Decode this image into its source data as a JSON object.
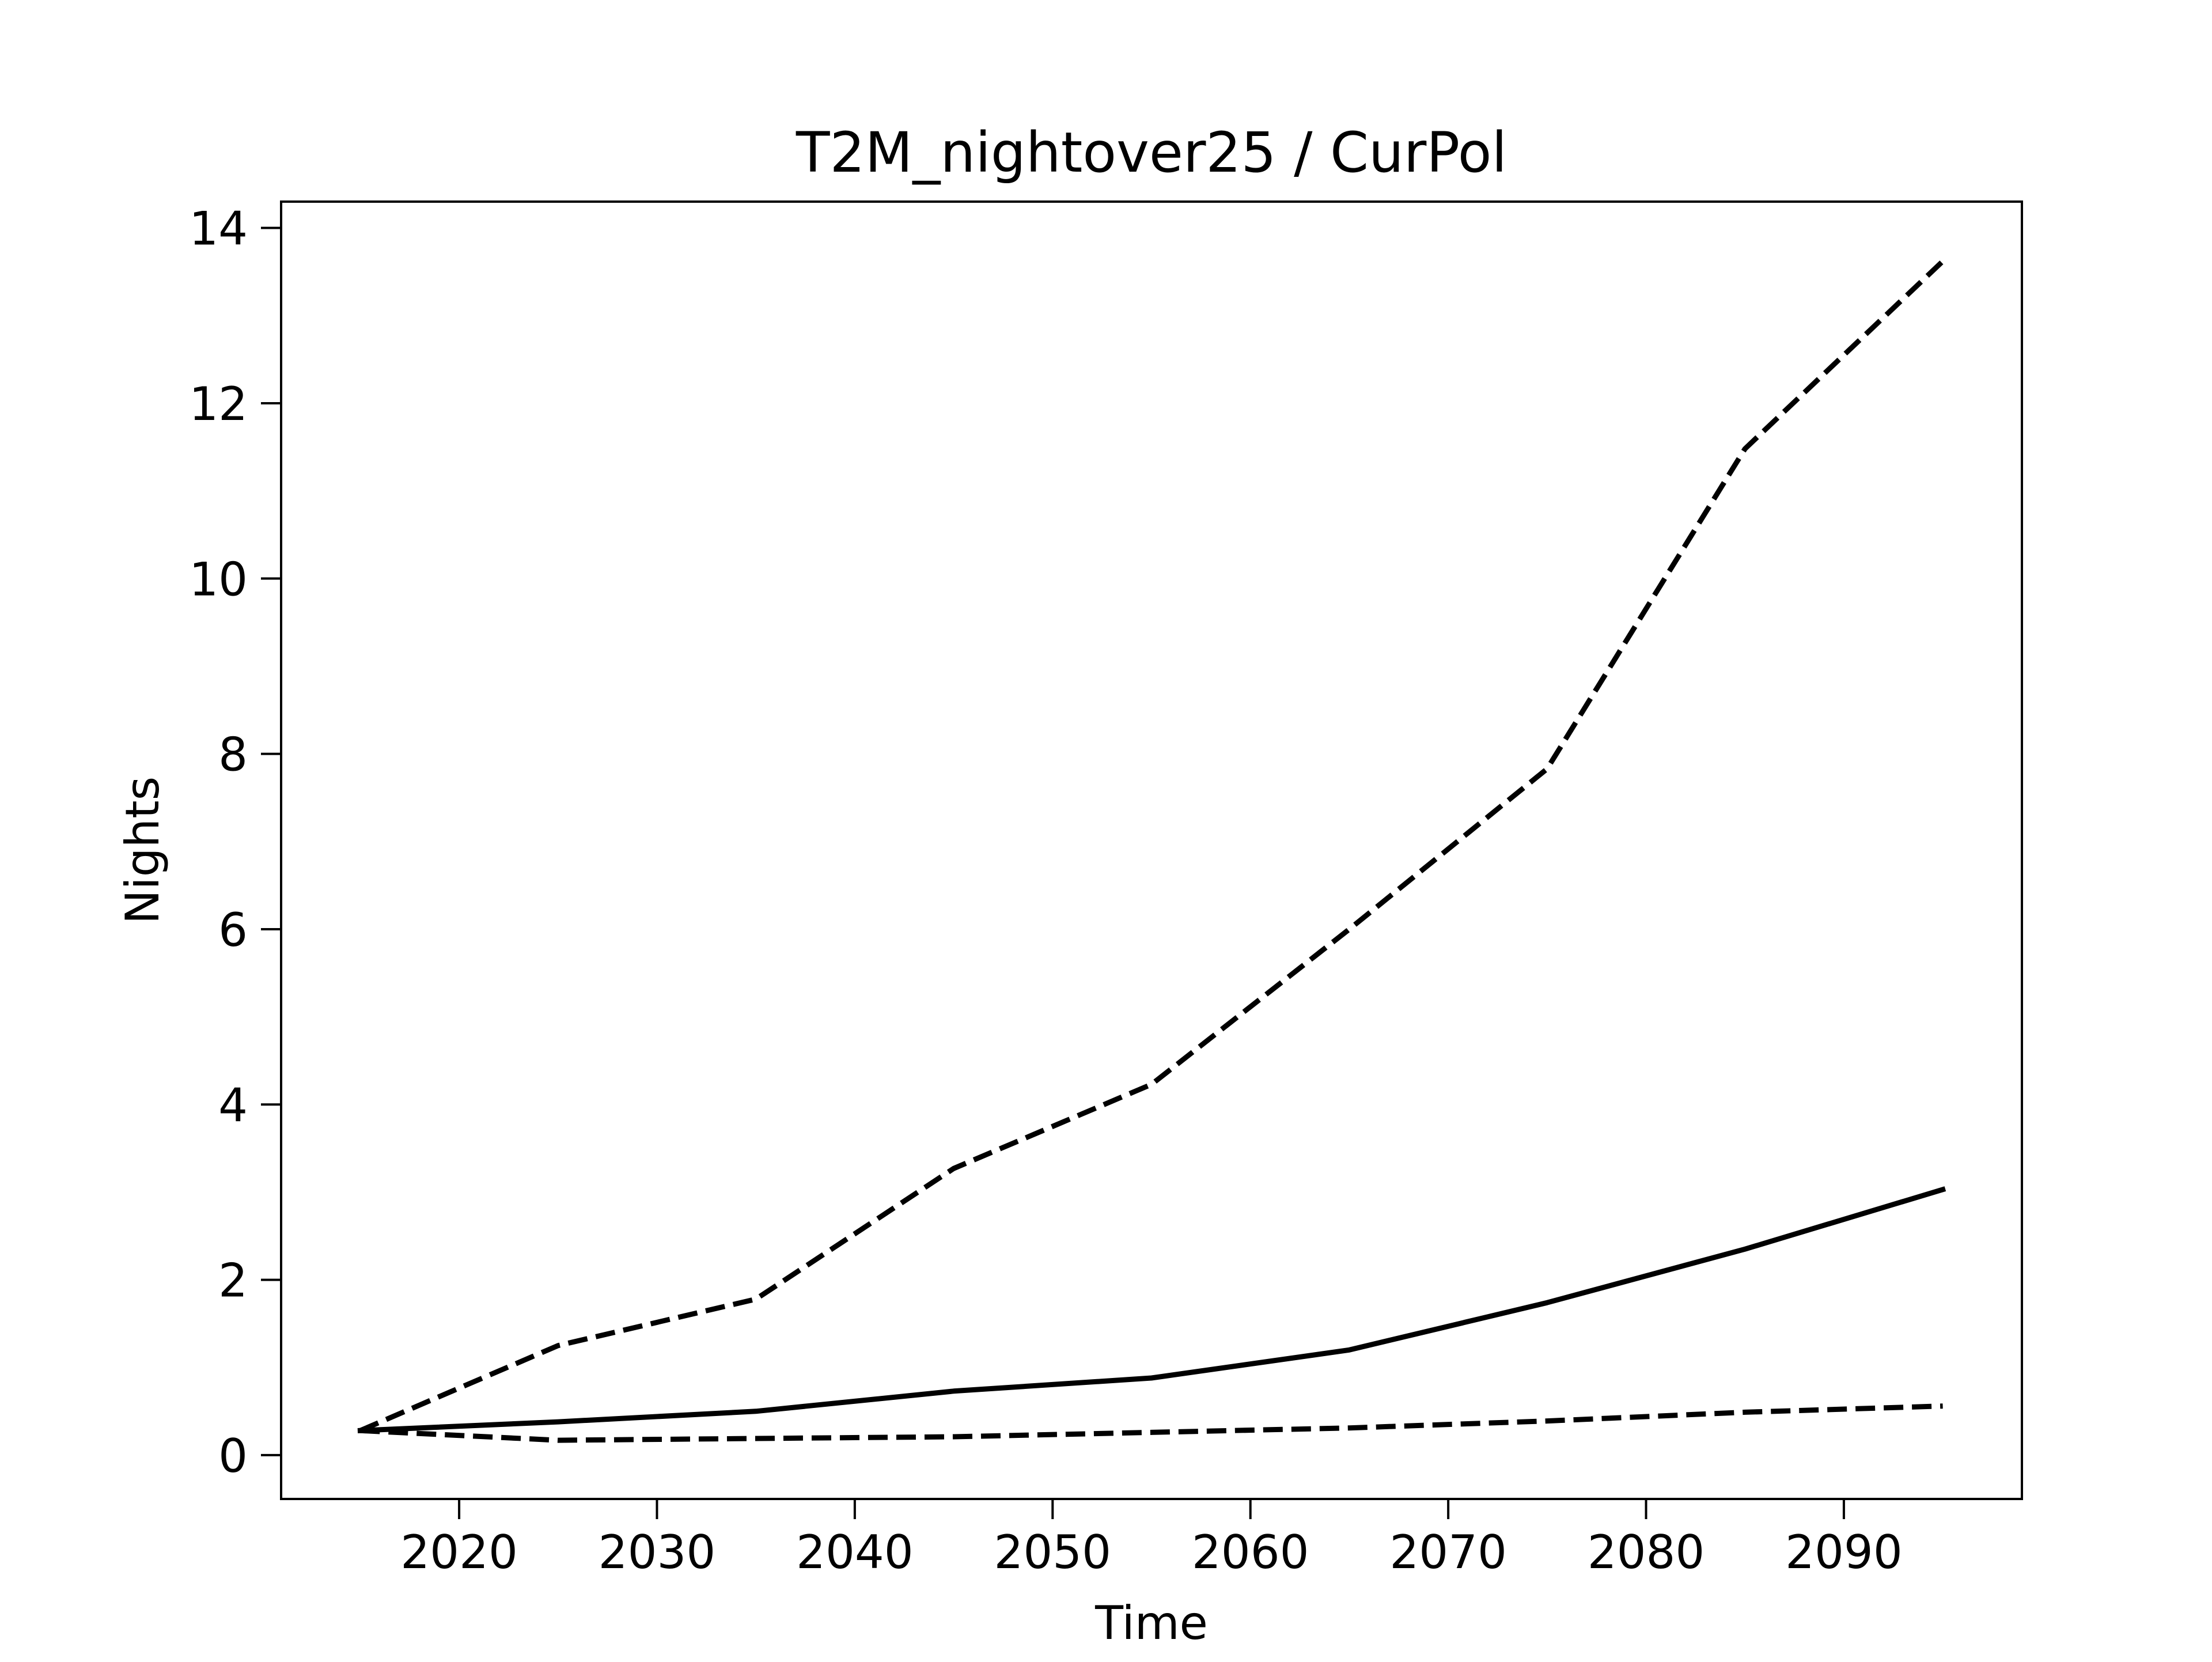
{
  "chart_data": {
    "type": "line",
    "title": "T2M_nightover25 / CurPol",
    "xlabel": "Time",
    "ylabel": "Nights",
    "xlim": [
      2011,
      2099
    ],
    "ylim": [
      -0.5,
      14.3
    ],
    "x_ticks": [
      2020,
      2030,
      2040,
      2050,
      2060,
      2070,
      2080,
      2090
    ],
    "y_ticks": [
      0,
      2,
      4,
      6,
      8,
      10,
      12,
      14
    ],
    "grid": false,
    "legend": "none",
    "x": [
      2015,
      2025,
      2035,
      2045,
      2055,
      2065,
      2075,
      2085,
      2095
    ],
    "series": [
      {
        "style": "dashed",
        "color": "#000000",
        "values": [
          0.28,
          1.25,
          1.78,
          3.27,
          4.23,
          6.0,
          7.83,
          11.48,
          13.62
        ]
      },
      {
        "style": "solid",
        "color": "#000000",
        "values": [
          0.28,
          0.38,
          0.5,
          0.73,
          0.88,
          1.2,
          1.74,
          2.35,
          3.03
        ]
      },
      {
        "style": "dashed",
        "color": "#000000",
        "values": [
          0.28,
          0.17,
          0.19,
          0.21,
          0.26,
          0.31,
          0.39,
          0.49,
          0.56
        ]
      }
    ]
  }
}
